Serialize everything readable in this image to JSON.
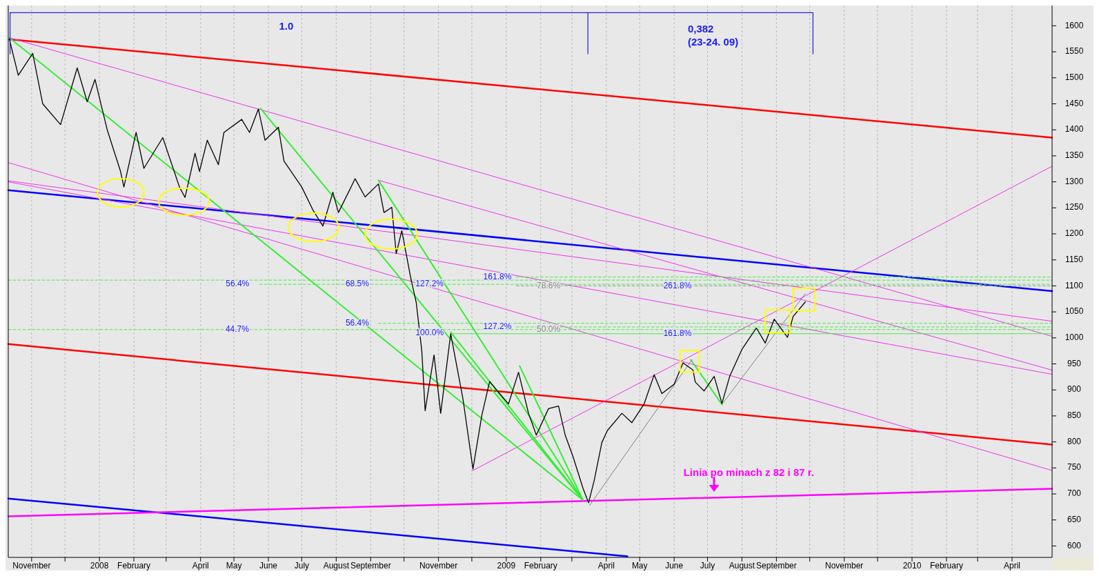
{
  "chart_data": {
    "type": "line",
    "xlim": [
      "2007-10-11",
      "2010-05-07"
    ],
    "ylim": [
      578,
      1639
    ],
    "xticks": [
      {
        "value": "2007-11-01",
        "label": "November"
      },
      {
        "value": "2007-12-01",
        "label": null
      },
      {
        "value": "2008-01-01",
        "label": "2008"
      },
      {
        "value": "2008-02-01",
        "label": "February"
      },
      {
        "value": "2008-03-01",
        "label": null
      },
      {
        "value": "2008-04-01",
        "label": "April"
      },
      {
        "value": "2008-05-01",
        "label": "May"
      },
      {
        "value": "2008-06-01",
        "label": "June"
      },
      {
        "value": "2008-07-01",
        "label": "July"
      },
      {
        "value": "2008-08-01",
        "label": "August"
      },
      {
        "value": "2008-09-01",
        "label": "September"
      },
      {
        "value": "2008-10-01",
        "label": null
      },
      {
        "value": "2008-11-01",
        "label": "November"
      },
      {
        "value": "2008-12-01",
        "label": null
      },
      {
        "value": "2009-01-01",
        "label": "2009"
      },
      {
        "value": "2009-02-01",
        "label": "February"
      },
      {
        "value": "2009-03-01",
        "label": null
      },
      {
        "value": "2009-04-01",
        "label": "April"
      },
      {
        "value": "2009-05-01",
        "label": "May"
      },
      {
        "value": "2009-06-01",
        "label": "June"
      },
      {
        "value": "2009-07-01",
        "label": "July"
      },
      {
        "value": "2009-08-01",
        "label": "August"
      },
      {
        "value": "2009-09-01",
        "label": "September"
      },
      {
        "value": "2009-10-01",
        "label": null
      },
      {
        "value": "2009-11-01",
        "label": "November"
      },
      {
        "value": "2009-12-01",
        "label": null
      },
      {
        "value": "2010-01-01",
        "label": "2010"
      },
      {
        "value": "2010-02-01",
        "label": "February"
      },
      {
        "value": "2010-03-01",
        "label": null
      },
      {
        "value": "2010-04-01",
        "label": "April"
      }
    ],
    "yticks": [
      600,
      650,
      700,
      750,
      800,
      850,
      900,
      950,
      1000,
      1050,
      1100,
      1150,
      1200,
      1250,
      1300,
      1350,
      1400,
      1450,
      1500,
      1550,
      1600
    ],
    "grid": "x",
    "series": [
      {
        "color": "#ff0000",
        "x": [
          "2007-10-12",
          "2010-05-07"
        ],
        "values": [
          1574,
          1385
        ]
      },
      {
        "color": "#ff0000",
        "x": [
          "2007-10-11",
          "2010-05-07"
        ],
        "values": [
          988,
          795
        ]
      },
      {
        "color": "#0000ff",
        "x": [
          "2007-10-11",
          "2010-05-07"
        ],
        "values": [
          1284,
          1090
        ]
      },
      {
        "color": "#0000ff",
        "x": [
          "2007-10-11",
          "2009-04-20"
        ],
        "values": [
          691,
          580
        ]
      },
      {
        "color": "#ff00ff",
        "x": [
          "2007-10-11",
          "2010-05-07"
        ],
        "values": [
          657,
          710
        ]
      },
      {
        "color": "#ee33ee",
        "x": [
          "2007-10-12",
          "2010-05-07"
        ],
        "values": [
          1577,
          1003
        ]
      },
      {
        "color": "#ee33ee",
        "x": [
          "2008-09-08",
          "2010-05-07"
        ],
        "values": [
          1303,
          938
        ]
      },
      {
        "color": "#ee33ee",
        "x": [
          "2007-10-11",
          "2010-05-07"
        ],
        "values": [
          1337,
          745
        ]
      },
      {
        "color": "#ee33ee",
        "x": [
          "2007-10-11",
          "2010-05-07"
        ],
        "values": [
          1302,
          1032
        ]
      },
      {
        "color": "#ee33ee",
        "x": [
          "2007-10-11",
          "2010-05-07"
        ],
        "values": [
          1300,
          930
        ]
      },
      {
        "color": "#ee33ee",
        "x": [
          "2008-12-01",
          "2010-05-07"
        ],
        "values": [
          744,
          1330
        ]
      },
      {
        "color": "#44ee44",
        "line_style": "dashed",
        "x": [
          "2007-10-11",
          "2010-05-07"
        ],
        "values": [
          1111,
          1111
        ]
      },
      {
        "color": "#44ee44",
        "line_style": "dashed",
        "x": [
          "2008-05-24",
          "2010-05-07"
        ],
        "values": [
          1103,
          1103
        ]
      },
      {
        "color": "#44ee44",
        "line_style": "dashed",
        "x": [
          "2009-01-10",
          "2010-05-07"
        ],
        "values": [
          1117,
          1117
        ]
      },
      {
        "color": "#999999",
        "line_style": "dashed",
        "x": [
          "2009-01-10",
          "2010-05-07"
        ],
        "values": [
          1100,
          1100
        ]
      },
      {
        "color": "#44ee44",
        "line_style": "dashed",
        "x": [
          "2008-09-08",
          "2010-05-07"
        ],
        "values": [
          1028,
          1028
        ]
      },
      {
        "color": "#44ee44",
        "line_style": "dashed",
        "x": [
          "2009-01-10",
          "2010-05-07"
        ],
        "values": [
          1021,
          1021
        ]
      },
      {
        "color": "#44ee44",
        "line_style": "dashed",
        "x": [
          "2007-10-11",
          "2010-05-07"
        ],
        "values": [
          1016,
          1016
        ]
      },
      {
        "color": "#44ee44",
        "x": [
          "2008-11-12",
          "2010-05-07"
        ],
        "values": [
          1008,
          1008
        ]
      },
      {
        "color": "#33ee33",
        "x": [
          "2007-10-12",
          "2009-03-11"
        ],
        "values": [
          1577,
          688
        ]
      },
      {
        "color": "#33ee33",
        "x": [
          "2008-05-25",
          "2009-03-11"
        ],
        "values": [
          1441,
          688
        ]
      },
      {
        "color": "#33ee33",
        "x": [
          "2008-09-08",
          "2009-03-11"
        ],
        "values": [
          1303,
          688
        ]
      },
      {
        "color": "#33ee33",
        "x": [
          "2008-11-12",
          "2009-03-11"
        ],
        "values": [
          1011,
          688
        ]
      },
      {
        "color": "#33ee33",
        "x": [
          "2009-01-13",
          "2009-03-11"
        ],
        "values": [
          946,
          688
        ]
      },
      {
        "color": "#33ee33",
        "x": [
          "2009-06-16",
          "2009-07-14"
        ],
        "values": [
          958,
          872
        ]
      },
      {
        "color": "#808080",
        "x": [
          "2009-03-17",
          "2009-06-17"
        ],
        "values": [
          678,
          958
        ]
      },
      {
        "color": "#808080",
        "x": [
          "2009-07-14",
          "2009-09-27"
        ],
        "values": [
          872,
          1085
        ]
      },
      {
        "color": "#000000",
        "x": [
          "2007-10-12",
          "2007-10-20",
          "2007-11-02",
          "2007-11-11",
          "2007-11-27",
          "2007-12-12",
          "2007-12-21",
          "2007-12-28",
          "2008-01-08",
          "2008-01-20",
          "2008-01-23",
          "2008-02-03",
          "2008-02-10",
          "2008-02-27",
          "2008-03-13",
          "2008-03-18",
          "2008-03-27",
          "2008-03-31",
          "2008-04-07",
          "2008-04-17",
          "2008-04-22",
          "2008-05-08",
          "2008-05-15",
          "2008-05-23",
          "2008-05-29",
          "2008-06-10",
          "2008-06-15",
          "2008-07-01",
          "2008-07-11",
          "2008-07-20",
          "2008-07-29",
          "2008-08-03",
          "2008-08-18",
          "2008-08-27",
          "2008-09-08",
          "2008-09-13",
          "2008-09-20",
          "2008-09-24",
          "2008-09-29",
          "2008-10-07",
          "2008-10-12",
          "2008-10-17",
          "2008-10-20",
          "2008-10-28",
          "2008-11-03",
          "2008-11-12",
          "2008-11-23",
          "2008-12-02",
          "2008-12-10",
          "2008-12-17",
          "2008-12-26",
          "2009-01-03",
          "2009-01-12",
          "2009-01-21",
          "2009-01-28",
          "2009-02-08",
          "2009-02-17",
          "2009-02-23",
          "2009-03-02",
          "2009-03-11",
          "2009-03-16",
          "2009-03-21",
          "2009-03-28",
          "2009-04-02",
          "2009-04-15",
          "2009-04-24",
          "2009-05-05",
          "2009-05-14",
          "2009-05-21",
          "2009-06-01",
          "2009-06-09",
          "2009-06-18",
          "2009-06-20",
          "2009-06-28",
          "2009-07-07",
          "2009-07-14",
          "2009-07-21",
          "2009-08-01",
          "2009-08-14",
          "2009-08-22",
          "2009-08-30",
          "2009-09-11",
          "2009-09-16",
          "2009-09-27"
        ],
        "values": [
          1574,
          1505,
          1547,
          1450,
          1410,
          1519,
          1454,
          1497,
          1400,
          1320,
          1290,
          1395,
          1326,
          1385,
          1290,
          1270,
          1355,
          1320,
          1380,
          1333,
          1395,
          1420,
          1395,
          1440,
          1380,
          1405,
          1340,
          1290,
          1246,
          1215,
          1280,
          1241,
          1306,
          1271,
          1296,
          1241,
          1251,
          1162,
          1206,
          1116,
          1068,
          975,
          860,
          967,
          855,
          1008,
          883,
          748,
          851,
          916,
          893,
          873,
          934,
          855,
          813,
          864,
          869,
          813,
          772,
          711,
          683,
          725,
          799,
          822,
          855,
          837,
          873,
          929,
          893,
          911,
          952,
          938,
          915,
          898,
          926,
          874,
          926,
          978,
          1019,
          990,
          1036,
          1001,
          1041,
          1069
        ]
      }
    ],
    "annotations": [
      "1.0",
      "0,382",
      "(23-24. 09)",
      "56.4%",
      {
        "text": "68.5%",
        "x": "2008-08-20",
        "y": 1103
      },
      {
        "text": "127.2%",
        "x": "2008-10-24",
        "y": 1103
      },
      {
        "text": "161.8%",
        "x": "2008-12-24",
        "y": 1117
      },
      {
        "text": "78.6%",
        "x": "2009-02-08",
        "y": 1100
      },
      {
        "text": "261.8%",
        "x": "2009-06-04",
        "y": 1100
      },
      {
        "text": "44.7%",
        "x": "2008-05-04",
        "y": 1016
      },
      {
        "text": "56.4%",
        "x": "2008-08-20",
        "y": 1028
      },
      "100.0%",
      {
        "text": "127.2%",
        "x": "2008-12-24",
        "y": 1021
      },
      {
        "text": "50.0%",
        "x": "2009-02-08",
        "y": 1016
      },
      {
        "text": "161.8%",
        "x": "2009-06-04",
        "y": 1008
      },
      "Linia po minach z 82 i 87 r."
    ]
  }
}
